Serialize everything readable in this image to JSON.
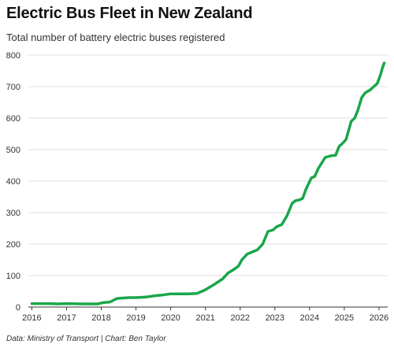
{
  "header": {
    "title": "Electric Bus Fleet in New Zealand",
    "subtitle": "Total number of battery electric buses registered"
  },
  "footer": {
    "source": "Data: Ministry of Transport | Chart: Ben Taylor"
  },
  "colors": {
    "line": "#1aa64a",
    "grid": "#dddddd",
    "axis": "#333333"
  },
  "chart_data": {
    "type": "line",
    "title": "Electric Bus Fleet in New Zealand",
    "subtitle": "Total number of battery electric buses registered",
    "xlabel": "",
    "ylabel": "",
    "xlim": [
      2015.9,
      2026.25
    ],
    "ylim": [
      0,
      800
    ],
    "x_ticks": [
      2016,
      2017,
      2018,
      2019,
      2020,
      2021,
      2022,
      2023,
      2024,
      2025,
      2026
    ],
    "y_ticks": [
      0,
      100,
      200,
      300,
      400,
      500,
      600,
      700,
      800
    ],
    "grid": "horizontal",
    "legend": "none",
    "series": [
      {
        "x": [
          2016.0,
          2016.5,
          2016.75,
          2017.0,
          2017.5,
          2017.9,
          2018.05,
          2018.25,
          2018.45,
          2018.55,
          2018.8,
          2019.0,
          2019.3,
          2019.55,
          2019.75,
          2020.0,
          2020.5,
          2020.75,
          2020.9,
          2021.0,
          2021.15,
          2021.3,
          2021.5,
          2021.65,
          2021.8,
          2021.95,
          2022.05,
          2022.2,
          2022.35,
          2022.5,
          2022.65,
          2022.8,
          2022.95,
          2023.05,
          2023.2,
          2023.35,
          2023.5,
          2023.6,
          2023.7,
          2023.8,
          2023.9,
          2024.05,
          2024.15,
          2024.25,
          2024.45,
          2024.6,
          2024.75,
          2024.85,
          2024.95,
          2025.05,
          2025.2,
          2025.3,
          2025.4,
          2025.5,
          2025.6,
          2025.75,
          2025.85,
          2025.95,
          2026.05,
          2026.1,
          2026.15
        ],
        "values": [
          11,
          11,
          10,
          11,
          10,
          10,
          14,
          16,
          27,
          28,
          30,
          30,
          32,
          36,
          38,
          42,
          42,
          43,
          50,
          55,
          65,
          75,
          90,
          108,
          118,
          130,
          150,
          168,
          175,
          182,
          200,
          240,
          245,
          255,
          262,
          290,
          330,
          338,
          340,
          345,
          375,
          410,
          415,
          440,
          475,
          480,
          482,
          510,
          520,
          532,
          590,
          600,
          628,
          665,
          680,
          690,
          700,
          710,
          740,
          760,
          775
        ]
      }
    ]
  }
}
